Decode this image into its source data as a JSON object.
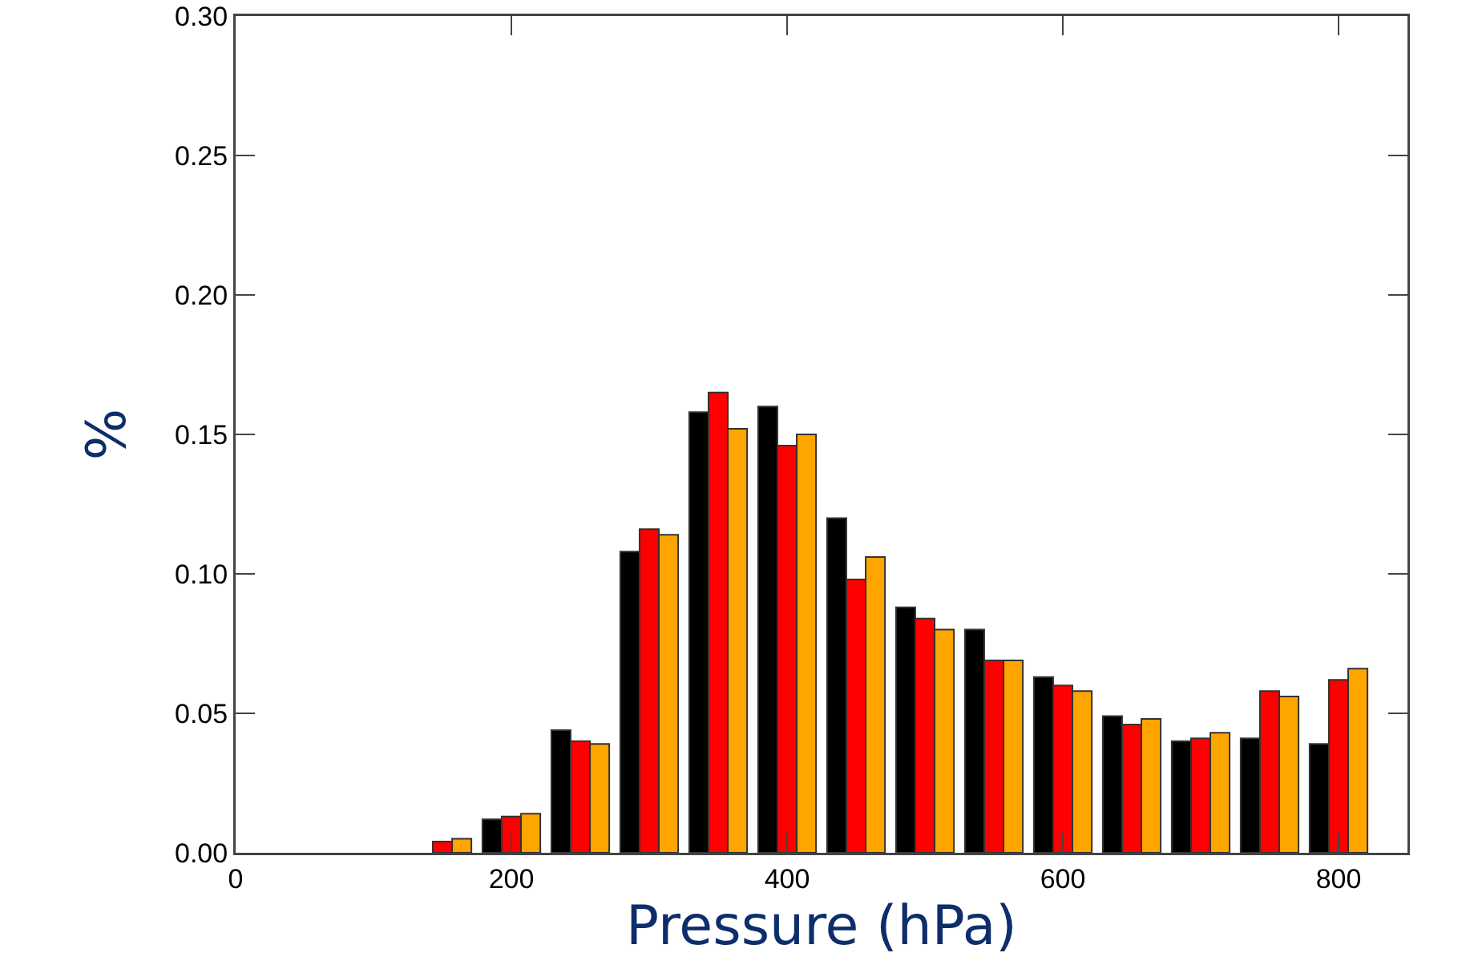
{
  "chart_data": {
    "type": "bar",
    "xlabel": "Pressure (hPa)",
    "ylabel": "%",
    "x": [
      150,
      200,
      250,
      300,
      350,
      400,
      450,
      500,
      550,
      600,
      650,
      700,
      750,
      800
    ],
    "series": [
      {
        "color": "#000000",
        "values": [
          null,
          0.012,
          0.044,
          0.108,
          0.158,
          0.16,
          0.12,
          0.088,
          0.08,
          0.063,
          0.049,
          0.04,
          0.041,
          0.039
        ]
      },
      {
        "color": "#ff0000",
        "values": [
          0.004,
          0.013,
          0.04,
          0.116,
          0.165,
          0.146,
          0.098,
          0.084,
          0.069,
          0.06,
          0.046,
          0.041,
          0.058,
          0.062
        ]
      },
      {
        "color": "#ffa500",
        "values": [
          0.005,
          0.014,
          0.039,
          0.114,
          0.152,
          0.15,
          0.106,
          0.08,
          0.069,
          0.058,
          0.048,
          0.043,
          0.056,
          0.066
        ]
      }
    ],
    "xlim": [
      0,
      850
    ],
    "xticks": [
      0,
      200,
      400,
      600,
      800
    ],
    "ylim": [
      0,
      0.3
    ],
    "yticks": [
      {
        "value": 0,
        "label": "0.00"
      },
      0.05,
      {
        "value": 0.1,
        "label": "0.10"
      },
      0.15,
      {
        "value": 0.2,
        "label": "0.20"
      },
      0.25,
      {
        "value": 0.3,
        "label": "0.30"
      }
    ],
    "grid": false
  }
}
